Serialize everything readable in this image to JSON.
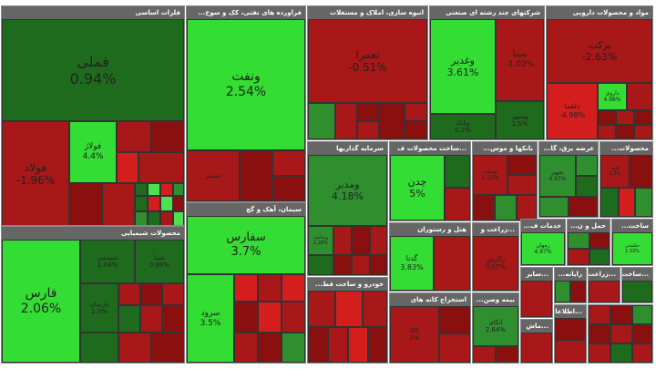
{
  "sectors": {
    "metals": {
      "title": "فلزات اساسی"
    },
    "petroleum": {
      "title": "فراورده های نفتی، کک و سوخ..."
    },
    "realestate": {
      "title": "انبوه سازی، املاک و مستغلات"
    },
    "holding": {
      "title": "شرکتهای چند رشته ای صنعتی"
    },
    "pharma": {
      "title": "مواد و محصولات دارویی"
    },
    "investment": {
      "title": "سرمایه گذاریها"
    },
    "mining": {
      "title": "استخراج کانه های..."
    },
    "misc": {
      "title": "...ساخت محصولات ف"
    },
    "banks": {
      "title": "بانکها و موس..."
    },
    "power": {
      "title": "عرضه برق، گا..."
    },
    "products": {
      "title": "محصولات..."
    },
    "chemicals": {
      "title": "محصولات شیمیایی"
    },
    "cement": {
      "title": "سیمان، آهک و گچ"
    },
    "hotel": {
      "title": "هتل و رستوران"
    },
    "crops": {
      "title": "...زراعت و"
    },
    "services": {
      "title": "خدمات ف..."
    },
    "transport": {
      "title": "حمل و ن..."
    },
    "construction": {
      "title": "ساخت..."
    },
    "auto": {
      "title": "خودرو و ساخت قط..."
    },
    "mining2": {
      "title": "استخراج کانه های"
    },
    "insurance": {
      "title": "بیمه وصن..."
    },
    "sm1": {
      "title": "...سایر"
    },
    "sm2": {
      "title": "رایانه..."
    },
    "sm3": {
      "title": "...زراعت"
    },
    "sm4": {
      "title": "...ساخت"
    },
    "sm5": {
      "title": "...ماش"
    },
    "sm6": {
      "title": "...اطلاعا"
    }
  },
  "tiles": {
    "fameli": {
      "name": "فملی",
      "pct": "0.94%"
    },
    "foulad": {
      "name": "فولاد",
      "pct": "-1.96%"
    },
    "fouladz": {
      "name": "فولاژ",
      "pct": "4.4%"
    },
    "vanaft": {
      "name": "ونفت",
      "pct": "2.54%"
    },
    "shbandar": {
      "name": "شبندر",
      "pct": ""
    },
    "vatejarat": {
      "name": "",
      "pct": ""
    },
    "tamra": {
      "name": "ثعمرا",
      "pct": "-0.51%"
    },
    "vaghadir": {
      "name": "وغدیر",
      "pct": "3.61%"
    },
    "sina": {
      "name": "سینا",
      "pct": "-1.02%"
    },
    "vaniko": {
      "name": "وبانک",
      "pct": "0.2%"
    },
    "vasapah": {
      "name": "وسپهر",
      "pct": "1.5%"
    },
    "barekat": {
      "name": "برکت",
      "pct": "-2.63%"
    },
    "delqa": {
      "name": "دلقما",
      "pct": "-4.98%"
    },
    "daroo": {
      "name": "داروی",
      "pct": "4.98%"
    },
    "vamadir": {
      "name": "ومدیر",
      "pct": "4.18%"
    },
    "vsakht": {
      "name": "وساخت",
      "pct": "1.28%"
    },
    "chadan": {
      "name": "چدن",
      "pct": "5%"
    },
    "vbmellat": {
      "name": "وبملت",
      "pct": "1.22%"
    },
    "tajhiz": {
      "name": "تجهیز",
      "pct": "4.97%"
    },
    "kaveh": {
      "name": "کاوه",
      "pct": "3.3%"
    },
    "fars": {
      "name": "فارس",
      "pct": "2.06%"
    },
    "shpars": {
      "name": "شپدیس",
      "pct": "1.04%"
    },
    "shapna": {
      "name": "شپنا",
      "pct": "0.99%"
    },
    "parsan": {
      "name": "پارسان",
      "pct": "1.3%"
    },
    "sfars": {
      "name": "سفارس",
      "pct": "3.7%"
    },
    "sarod": {
      "name": "سرود",
      "pct": "3.5%"
    },
    "gdana": {
      "name": "گدنا",
      "pct": "3.83%"
    },
    "zagros": {
      "name": "زاگرس",
      "pct": "0.07%"
    },
    "zmahan": {
      "name": "زمهان",
      "pct": "4.97%"
    },
    "hkeshti": {
      "name": "حکشتی",
      "pct": "1.33%"
    },
    "kala": {
      "name": "کالا",
      "pct": "2%"
    },
    "atkai": {
      "name": "اتکای",
      "pct": "2.64%"
    }
  }
}
